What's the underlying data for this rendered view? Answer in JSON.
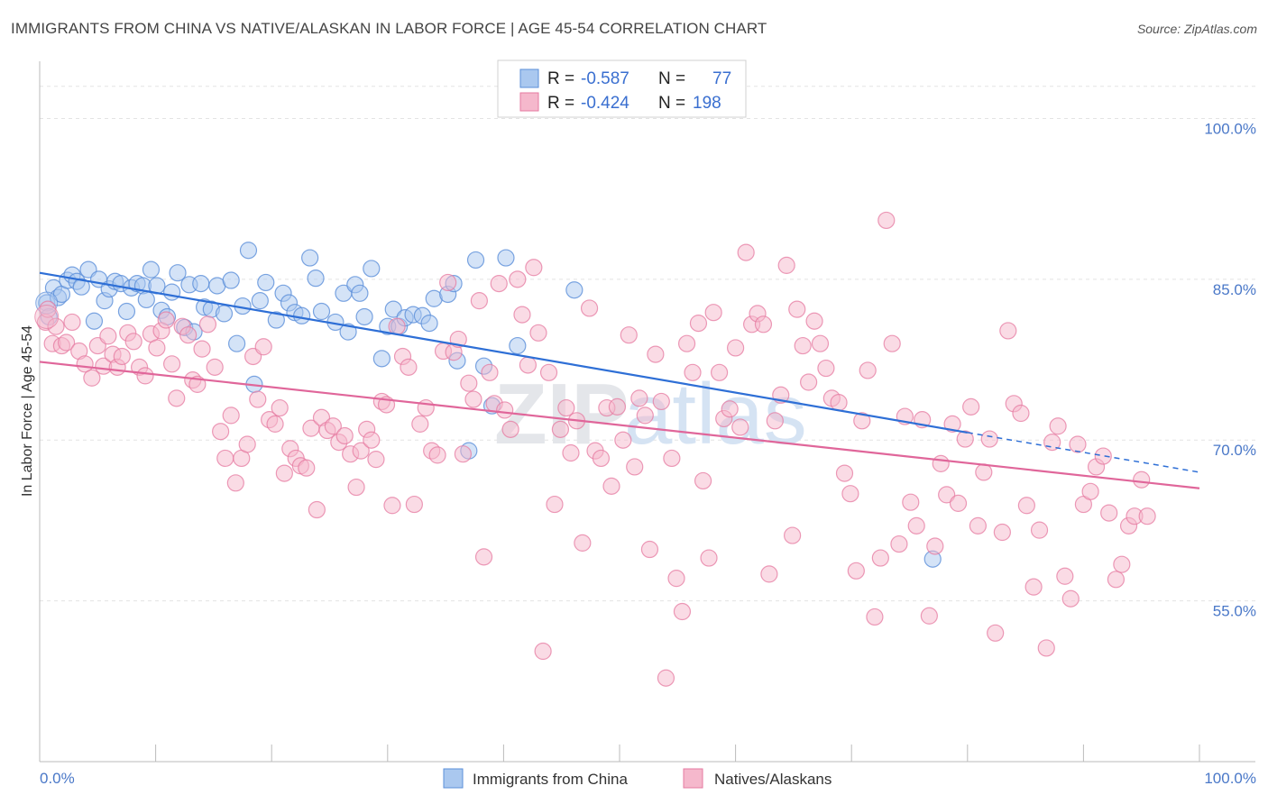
{
  "header": {
    "title": "IMMIGRANTS FROM CHINA VS NATIVE/ALASKAN IN LABOR FORCE | AGE 45-54 CORRELATION CHART",
    "source": "Source: ZipAtlas.com"
  },
  "watermark": {
    "zip": "ZIP",
    "atlas": "atlas"
  },
  "legend": {
    "series1": {
      "r_label": "R =",
      "r_value": "-0.587",
      "n_label": "N =",
      "n_value": "77"
    },
    "series2": {
      "r_label": "R =",
      "r_value": "-0.424",
      "n_label": "N =",
      "n_value": "198"
    }
  },
  "colors": {
    "blue": "#5b8fd9",
    "blue_fill": "#aac8ef",
    "pink": "#e57aa0",
    "pink_fill": "#f5b8cc",
    "tick": "#4a78c8"
  },
  "chart_data": {
    "type": "scatter",
    "title": "IMMIGRANTS FROM CHINA VS NATIVE/ALASKAN IN LABOR FORCE | AGE 45-54 CORRELATION CHART",
    "xlabel": "",
    "ylabel": "In Labor Force | Age 45-54",
    "xlim": [
      0,
      100
    ],
    "ylim": [
      40,
      105
    ],
    "x_tick_labels": [
      "0.0%",
      "100.0%"
    ],
    "y_ticks": [
      55,
      70,
      85,
      100
    ],
    "y_tick_labels": [
      "55.0%",
      "70.0%",
      "85.0%",
      "100.0%"
    ],
    "grid": true,
    "legend_position": "top-center",
    "series": [
      {
        "name": "Immigrants from China",
        "r": -0.587,
        "n": 77,
        "trend": {
          "x0": 0,
          "y0": 85.6,
          "x1": 80,
          "y1": 70.7,
          "dash_to_x": 100,
          "dash_to_y": 67.0
        },
        "points": [
          [
            0.6,
            82.8
          ],
          [
            0.8,
            81.5
          ],
          [
            1.2,
            84.2
          ],
          [
            1.6,
            83.3
          ],
          [
            1.9,
            83.6
          ],
          [
            2.4,
            84.9
          ],
          [
            2.8,
            85.4
          ],
          [
            3.2,
            84.8
          ],
          [
            3.6,
            84.3
          ],
          [
            4.2,
            85.9
          ],
          [
            4.7,
            81.1
          ],
          [
            5.1,
            85.0
          ],
          [
            5.6,
            83.0
          ],
          [
            6.0,
            84.1
          ],
          [
            6.5,
            84.8
          ],
          [
            7.0,
            84.6
          ],
          [
            7.5,
            82.0
          ],
          [
            7.9,
            84.2
          ],
          [
            8.4,
            84.6
          ],
          [
            8.9,
            84.4
          ],
          [
            9.2,
            83.1
          ],
          [
            9.6,
            85.9
          ],
          [
            10.1,
            84.4
          ],
          [
            10.5,
            82.1
          ],
          [
            11.0,
            81.5
          ],
          [
            11.4,
            83.8
          ],
          [
            11.9,
            85.6
          ],
          [
            12.5,
            80.5
          ],
          [
            12.9,
            84.5
          ],
          [
            13.3,
            80.1
          ],
          [
            13.9,
            84.6
          ],
          [
            14.2,
            82.4
          ],
          [
            14.8,
            82.2
          ],
          [
            15.3,
            84.4
          ],
          [
            15.9,
            81.8
          ],
          [
            16.5,
            84.9
          ],
          [
            17.0,
            79.0
          ],
          [
            17.5,
            82.5
          ],
          [
            18.0,
            87.7
          ],
          [
            18.5,
            75.2
          ],
          [
            19.0,
            83.0
          ],
          [
            19.5,
            84.7
          ],
          [
            20.4,
            81.2
          ],
          [
            21.0,
            83.7
          ],
          [
            21.5,
            82.8
          ],
          [
            22.0,
            81.9
          ],
          [
            22.6,
            81.6
          ],
          [
            23.3,
            87.0
          ],
          [
            23.8,
            85.1
          ],
          [
            24.3,
            82.0
          ],
          [
            25.5,
            81.0
          ],
          [
            26.2,
            83.7
          ],
          [
            26.6,
            80.1
          ],
          [
            27.2,
            84.5
          ],
          [
            27.6,
            83.7
          ],
          [
            28.0,
            81.5
          ],
          [
            28.6,
            86.0
          ],
          [
            29.5,
            77.6
          ],
          [
            30.0,
            80.6
          ],
          [
            30.5,
            82.2
          ],
          [
            31.0,
            80.6
          ],
          [
            31.5,
            81.4
          ],
          [
            32.2,
            81.7
          ],
          [
            33.0,
            81.6
          ],
          [
            33.6,
            80.9
          ],
          [
            34.0,
            83.2
          ],
          [
            35.2,
            83.6
          ],
          [
            35.7,
            84.6
          ],
          [
            36.0,
            77.4
          ],
          [
            37.0,
            69.0
          ],
          [
            37.6,
            86.8
          ],
          [
            38.3,
            76.9
          ],
          [
            39.0,
            73.2
          ],
          [
            40.2,
            87.0
          ],
          [
            41.2,
            78.8
          ],
          [
            46.1,
            84.0
          ],
          [
            77.0,
            58.9
          ]
        ]
      },
      {
        "name": "Natives/Alaskans",
        "r": -0.424,
        "n": 198,
        "trend": {
          "x0": 0,
          "y0": 77.3,
          "x1": 100,
          "y1": 65.5
        },
        "points": [
          [
            0.5,
            81.0
          ],
          [
            0.7,
            82.2
          ],
          [
            1.1,
            79.0
          ],
          [
            1.4,
            80.6
          ],
          [
            1.9,
            78.8
          ],
          [
            2.3,
            79.1
          ],
          [
            2.8,
            81.0
          ],
          [
            3.4,
            78.3
          ],
          [
            3.9,
            77.1
          ],
          [
            4.5,
            75.8
          ],
          [
            5.0,
            78.8
          ],
          [
            5.5,
            76.9
          ],
          [
            5.9,
            79.7
          ],
          [
            6.3,
            78.0
          ],
          [
            6.7,
            76.8
          ],
          [
            7.1,
            77.8
          ],
          [
            7.6,
            80.0
          ],
          [
            8.1,
            79.2
          ],
          [
            8.6,
            76.8
          ],
          [
            9.1,
            76.0
          ],
          [
            9.6,
            79.9
          ],
          [
            10.1,
            78.6
          ],
          [
            10.5,
            80.2
          ],
          [
            10.9,
            81.2
          ],
          [
            11.4,
            77.1
          ],
          [
            11.8,
            73.9
          ],
          [
            12.3,
            80.6
          ],
          [
            12.8,
            79.8
          ],
          [
            13.2,
            75.6
          ],
          [
            13.6,
            75.2
          ],
          [
            14.0,
            78.5
          ],
          [
            14.5,
            80.8
          ],
          [
            15.1,
            76.8
          ],
          [
            15.6,
            70.8
          ],
          [
            16.0,
            68.3
          ],
          [
            16.5,
            72.3
          ],
          [
            16.9,
            66.0
          ],
          [
            17.4,
            68.3
          ],
          [
            17.9,
            69.6
          ],
          [
            18.4,
            77.8
          ],
          [
            18.8,
            73.8
          ],
          [
            19.3,
            78.7
          ],
          [
            19.8,
            71.9
          ],
          [
            20.3,
            71.5
          ],
          [
            20.7,
            73.0
          ],
          [
            21.1,
            66.9
          ],
          [
            21.6,
            69.2
          ],
          [
            22.1,
            68.3
          ],
          [
            22.5,
            67.6
          ],
          [
            23.0,
            67.4
          ],
          [
            23.4,
            71.1
          ],
          [
            23.9,
            63.5
          ],
          [
            24.3,
            72.1
          ],
          [
            24.8,
            70.9
          ],
          [
            25.3,
            71.3
          ],
          [
            25.8,
            69.8
          ],
          [
            26.3,
            70.4
          ],
          [
            26.8,
            68.7
          ],
          [
            27.3,
            65.6
          ],
          [
            27.7,
            69.0
          ],
          [
            28.2,
            71.0
          ],
          [
            28.6,
            70.0
          ],
          [
            29.0,
            68.2
          ],
          [
            29.5,
            73.6
          ],
          [
            29.9,
            73.3
          ],
          [
            30.4,
            63.9
          ],
          [
            30.8,
            80.6
          ],
          [
            31.3,
            77.8
          ],
          [
            31.8,
            76.8
          ],
          [
            32.3,
            64.0
          ],
          [
            32.8,
            71.5
          ],
          [
            33.3,
            73.0
          ],
          [
            33.8,
            69.0
          ],
          [
            34.3,
            68.6
          ],
          [
            34.8,
            78.3
          ],
          [
            35.2,
            84.7
          ],
          [
            35.7,
            78.2
          ],
          [
            36.1,
            79.4
          ],
          [
            36.5,
            68.7
          ],
          [
            37.0,
            75.3
          ],
          [
            37.4,
            73.8
          ],
          [
            37.9,
            83.0
          ],
          [
            38.3,
            59.1
          ],
          [
            38.8,
            76.3
          ],
          [
            39.2,
            73.4
          ],
          [
            39.6,
            84.6
          ],
          [
            40.1,
            72.8
          ],
          [
            40.6,
            71.0
          ],
          [
            41.2,
            85.0
          ],
          [
            41.6,
            81.7
          ],
          [
            42.1,
            77.0
          ],
          [
            42.6,
            86.1
          ],
          [
            43.0,
            80.0
          ],
          [
            43.4,
            50.3
          ],
          [
            43.9,
            76.3
          ],
          [
            44.4,
            64.0
          ],
          [
            44.9,
            71.0
          ],
          [
            45.4,
            73.0
          ],
          [
            45.8,
            68.8
          ],
          [
            46.3,
            71.8
          ],
          [
            46.8,
            60.4
          ],
          [
            47.4,
            82.3
          ],
          [
            47.9,
            69.0
          ],
          [
            48.4,
            68.3
          ],
          [
            48.9,
            73.0
          ],
          [
            49.3,
            65.7
          ],
          [
            49.8,
            73.1
          ],
          [
            50.3,
            70.0
          ],
          [
            50.8,
            79.8
          ],
          [
            51.3,
            67.5
          ],
          [
            51.7,
            73.9
          ],
          [
            52.2,
            72.3
          ],
          [
            52.6,
            59.8
          ],
          [
            53.1,
            78.0
          ],
          [
            53.6,
            73.6
          ],
          [
            54.0,
            47.8
          ],
          [
            54.5,
            68.3
          ],
          [
            54.9,
            57.1
          ],
          [
            55.4,
            54.0
          ],
          [
            55.8,
            79.0
          ],
          [
            56.3,
            76.3
          ],
          [
            56.8,
            80.9
          ],
          [
            57.2,
            66.2
          ],
          [
            57.7,
            59.0
          ],
          [
            58.1,
            81.9
          ],
          [
            58.6,
            76.3
          ],
          [
            59.0,
            72.0
          ],
          [
            59.5,
            72.9
          ],
          [
            60.0,
            78.6
          ],
          [
            60.4,
            71.2
          ],
          [
            60.9,
            87.5
          ],
          [
            61.4,
            80.8
          ],
          [
            61.9,
            81.8
          ],
          [
            62.4,
            80.8
          ],
          [
            62.9,
            57.5
          ],
          [
            63.4,
            71.8
          ],
          [
            63.9,
            74.2
          ],
          [
            64.4,
            86.3
          ],
          [
            64.9,
            61.1
          ],
          [
            65.3,
            82.2
          ],
          [
            65.8,
            78.8
          ],
          [
            66.3,
            75.4
          ],
          [
            66.8,
            81.1
          ],
          [
            67.3,
            79.0
          ],
          [
            67.8,
            76.7
          ],
          [
            68.3,
            73.9
          ],
          [
            68.9,
            73.5
          ],
          [
            69.4,
            66.9
          ],
          [
            69.9,
            65.0
          ],
          [
            70.4,
            57.8
          ],
          [
            70.9,
            71.8
          ],
          [
            71.4,
            76.5
          ],
          [
            72.0,
            53.5
          ],
          [
            72.5,
            59.0
          ],
          [
            73.0,
            90.5
          ],
          [
            73.5,
            79.0
          ],
          [
            74.1,
            60.3
          ],
          [
            74.6,
            72.2
          ],
          [
            75.1,
            64.2
          ],
          [
            75.6,
            62.0
          ],
          [
            76.1,
            71.9
          ],
          [
            76.7,
            53.6
          ],
          [
            77.2,
            60.1
          ],
          [
            77.7,
            67.8
          ],
          [
            78.2,
            64.9
          ],
          [
            78.7,
            71.5
          ],
          [
            79.2,
            64.1
          ],
          [
            79.8,
            70.1
          ],
          [
            80.3,
            73.1
          ],
          [
            80.9,
            62.0
          ],
          [
            81.4,
            67.0
          ],
          [
            81.9,
            70.1
          ],
          [
            82.4,
            52.0
          ],
          [
            83.0,
            61.4
          ],
          [
            83.5,
            80.2
          ],
          [
            84.0,
            73.4
          ],
          [
            84.6,
            72.5
          ],
          [
            85.1,
            63.9
          ],
          [
            85.7,
            56.3
          ],
          [
            86.2,
            61.6
          ],
          [
            86.8,
            50.6
          ],
          [
            87.3,
            69.8
          ],
          [
            87.8,
            71.3
          ],
          [
            88.4,
            57.3
          ],
          [
            88.9,
            55.2
          ],
          [
            89.5,
            69.6
          ],
          [
            90.0,
            64.0
          ],
          [
            90.6,
            65.2
          ],
          [
            91.1,
            67.5
          ],
          [
            91.7,
            68.5
          ],
          [
            92.2,
            63.2
          ],
          [
            92.8,
            57.0
          ],
          [
            93.3,
            58.4
          ],
          [
            93.9,
            62.0
          ],
          [
            94.4,
            62.9
          ],
          [
            95.0,
            66.3
          ],
          [
            95.5,
            62.9
          ]
        ]
      }
    ]
  },
  "bottom_legend": {
    "series1": "Immigrants from China",
    "series2": "Natives/Alaskans"
  }
}
